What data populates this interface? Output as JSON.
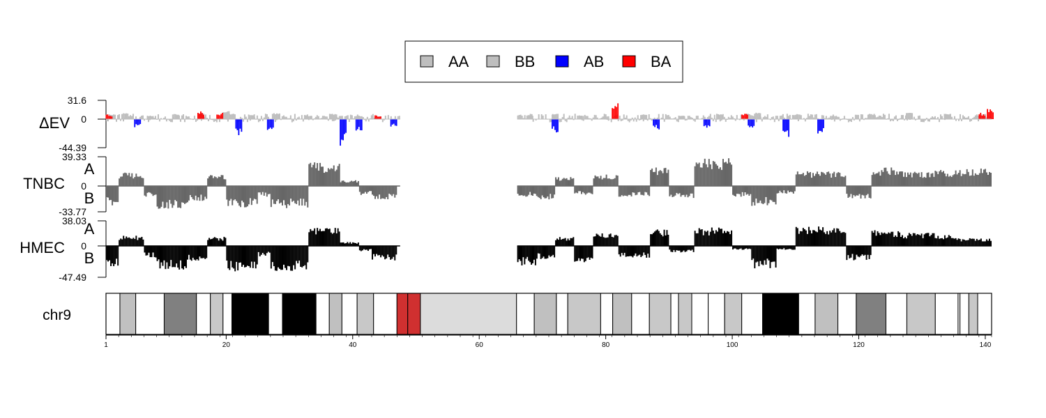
{
  "legend": {
    "items": [
      {
        "label": "AA",
        "color": "#BEBEBE"
      },
      {
        "label": "BB",
        "color": "#BEBEBE"
      },
      {
        "label": "AB",
        "color": "#0000FF"
      },
      {
        "label": "BA",
        "color": "#FF0000"
      }
    ]
  },
  "chart_data": {
    "type": "bar",
    "chromosome": "chr9",
    "x_ticks": [
      1,
      20,
      40,
      60,
      80,
      100,
      120,
      140
    ],
    "xlim": [
      1,
      141
    ],
    "gap_region": [
      47.5,
      66
    ],
    "tracks": [
      {
        "name": "ΔEV",
        "ymax": 31.6,
        "ymin": -44.39,
        "ymax_label": "31.6",
        "zero_label": "0",
        "ymin_label": "-44.39",
        "series": {
          "AA_BB_gray": [
            [
              2,
              8
            ],
            [
              4,
              10
            ],
            [
              8,
              6
            ],
            [
              12,
              9
            ],
            [
              16,
              11
            ],
            [
              20,
              14
            ],
            [
              24,
              8
            ],
            [
              28,
              10
            ],
            [
              33,
              6
            ],
            [
              37,
              9
            ],
            [
              41,
              6
            ],
            [
              44,
              5
            ],
            [
              68,
              7
            ],
            [
              72,
              9
            ],
            [
              76,
              6
            ],
            [
              80,
              5
            ],
            [
              86,
              8
            ],
            [
              92,
              6
            ],
            [
              98,
              9
            ],
            [
              104,
              11
            ],
            [
              110,
              8
            ],
            [
              116,
              6
            ],
            [
              122,
              9
            ],
            [
              128,
              11
            ],
            [
              134,
              9
            ],
            [
              139,
              6
            ]
          ],
          "AB": [
            [
              6,
              -15
            ],
            [
              22,
              -25
            ],
            [
              27,
              -17
            ],
            [
              38.5,
              -42
            ],
            [
              41,
              -18
            ],
            [
              46.5,
              -14
            ],
            [
              72,
              -22
            ],
            [
              88,
              -17
            ],
            [
              96,
              -16
            ],
            [
              103,
              -17
            ],
            [
              108.5,
              -35
            ],
            [
              114,
              -26
            ]
          ],
          "BA": [
            [
              1.5,
              8
            ],
            [
              16,
              14
            ],
            [
              19,
              11
            ],
            [
              44,
              7
            ],
            [
              81.5,
              28
            ],
            [
              102,
              9
            ],
            [
              139.5,
              11
            ],
            [
              140.8,
              18
            ]
          ]
        }
      },
      {
        "name": "TNBC",
        "ymax": 39.33,
        "ymin": -33.77,
        "ymax_label": "39.33",
        "zero_label": "0",
        "ymin_label": "-33.77",
        "a_label": "A",
        "b_label": "B",
        "regions": [
          [
            1,
            3,
            -26
          ],
          [
            3,
            7,
            18
          ],
          [
            7,
            9,
            -14
          ],
          [
            9,
            14,
            -30
          ],
          [
            14,
            17,
            -20
          ],
          [
            17,
            20,
            15
          ],
          [
            20,
            25,
            -28
          ],
          [
            25,
            27,
            -14
          ],
          [
            27,
            33,
            -29
          ],
          [
            33,
            38,
            32
          ],
          [
            38,
            41,
            8
          ],
          [
            41,
            43,
            -12
          ],
          [
            43,
            47,
            -18
          ],
          [
            66,
            69,
            -14
          ],
          [
            69,
            72,
            -18
          ],
          [
            72,
            75,
            12
          ],
          [
            75,
            78,
            -12
          ],
          [
            78,
            82,
            16
          ],
          [
            82,
            87,
            -14
          ],
          [
            87,
            90,
            26
          ],
          [
            90,
            94,
            -16
          ],
          [
            94,
            100,
            38
          ],
          [
            100,
            103,
            -14
          ],
          [
            103,
            107,
            -26
          ],
          [
            107,
            110,
            -10
          ],
          [
            110,
            118,
            20
          ],
          [
            118,
            122,
            -18
          ],
          [
            122,
            127,
            25
          ],
          [
            127,
            132,
            20
          ],
          [
            132,
            135,
            22
          ],
          [
            135,
            141,
            24
          ]
        ]
      },
      {
        "name": "HMEC",
        "ymax": 38.03,
        "ymin": -47.49,
        "ymax_label": "38.03",
        "zero_label": "0",
        "ymin_label": "-47.49",
        "a_label": "A",
        "b_label": "B",
        "regions": [
          [
            1,
            3,
            -32
          ],
          [
            3,
            7,
            16
          ],
          [
            7,
            9,
            -18
          ],
          [
            9,
            14,
            -36
          ],
          [
            14,
            17,
            -24
          ],
          [
            17,
            20,
            14
          ],
          [
            20,
            25,
            -40
          ],
          [
            25,
            27,
            -16
          ],
          [
            27,
            33,
            -38
          ],
          [
            33,
            38,
            30
          ],
          [
            38,
            41,
            6
          ],
          [
            41,
            43,
            -8
          ],
          [
            43,
            47,
            -22
          ],
          [
            66,
            69,
            -30
          ],
          [
            69,
            72,
            -20
          ],
          [
            72,
            75,
            14
          ],
          [
            75,
            78,
            -26
          ],
          [
            78,
            82,
            20
          ],
          [
            82,
            87,
            -18
          ],
          [
            87,
            90,
            25
          ],
          [
            90,
            94,
            -10
          ],
          [
            94,
            100,
            28
          ],
          [
            100,
            103,
            -6
          ],
          [
            103,
            107,
            -34
          ],
          [
            107,
            110,
            -6
          ],
          [
            110,
            118,
            30
          ],
          [
            118,
            122,
            -22
          ],
          [
            122,
            127,
            24
          ],
          [
            127,
            132,
            20
          ],
          [
            132,
            135,
            18
          ],
          [
            135,
            141,
            12
          ]
        ]
      }
    ],
    "ideogram": [
      {
        "start": 1,
        "end": 3.2,
        "color": "#FFFFFF"
      },
      {
        "start": 3.2,
        "end": 5.7,
        "color": "#C0C0C0"
      },
      {
        "start": 5.7,
        "end": 10.2,
        "color": "#FFFFFF"
      },
      {
        "start": 10.2,
        "end": 15.3,
        "color": "#808080"
      },
      {
        "start": 15.3,
        "end": 17.5,
        "color": "#FFFFFF"
      },
      {
        "start": 17.5,
        "end": 19.5,
        "color": "#C8C8C8"
      },
      {
        "start": 19.5,
        "end": 20.9,
        "color": "#FFFFFF"
      },
      {
        "start": 20.9,
        "end": 26.7,
        "color": "#000000"
      },
      {
        "start": 26.7,
        "end": 28.9,
        "color": "#FFFFFF"
      },
      {
        "start": 28.9,
        "end": 34.2,
        "color": "#000000"
      },
      {
        "start": 34.2,
        "end": 36.3,
        "color": "#FFFFFF"
      },
      {
        "start": 36.3,
        "end": 38.3,
        "color": "#C0C0C0"
      },
      {
        "start": 38.3,
        "end": 40.7,
        "color": "#FFFFFF"
      },
      {
        "start": 40.7,
        "end": 43.3,
        "color": "#C8C8C8"
      },
      {
        "start": 43.3,
        "end": 47,
        "color": "#FFFFFF"
      },
      {
        "start": 47,
        "end": 48.7,
        "color": "#D03030"
      },
      {
        "start": 48.7,
        "end": 50.7,
        "color": "#D03030"
      },
      {
        "start": 50.7,
        "end": 65.9,
        "color": "#DCDCDC"
      },
      {
        "start": 65.9,
        "end": 68.7,
        "color": "#FFFFFF"
      },
      {
        "start": 68.7,
        "end": 72.2,
        "color": "#C0C0C0"
      },
      {
        "start": 72.2,
        "end": 74,
        "color": "#FFFFFF"
      },
      {
        "start": 74,
        "end": 79.2,
        "color": "#C8C8C8"
      },
      {
        "start": 79.2,
        "end": 81.1,
        "color": "#FFFFFF"
      },
      {
        "start": 81.1,
        "end": 84.1,
        "color": "#C0C0C0"
      },
      {
        "start": 84.1,
        "end": 86.9,
        "color": "#FFFFFF"
      },
      {
        "start": 86.9,
        "end": 90.3,
        "color": "#C8C8C8"
      },
      {
        "start": 90.3,
        "end": 91.5,
        "color": "#FFFFFF"
      },
      {
        "start": 91.5,
        "end": 93.6,
        "color": "#C8C8C8"
      },
      {
        "start": 93.6,
        "end": 96.2,
        "color": "#FFFFFF"
      },
      {
        "start": 96.2,
        "end": 98.8,
        "color": "#FFFFFF"
      },
      {
        "start": 98.8,
        "end": 101.5,
        "color": "#C8C8C8"
      },
      {
        "start": 101.5,
        "end": 104.8,
        "color": "#FFFFFF"
      },
      {
        "start": 104.8,
        "end": 110.5,
        "color": "#000000"
      },
      {
        "start": 110.5,
        "end": 113.1,
        "color": "#FFFFFF"
      },
      {
        "start": 113.1,
        "end": 116.7,
        "color": "#C0C0C0"
      },
      {
        "start": 116.7,
        "end": 119.6,
        "color": "#FFFFFF"
      },
      {
        "start": 119.6,
        "end": 124.3,
        "color": "#808080"
      },
      {
        "start": 124.3,
        "end": 127.6,
        "color": "#FFFFFF"
      },
      {
        "start": 127.6,
        "end": 132.1,
        "color": "#C8C8C8"
      },
      {
        "start": 132.1,
        "end": 135.7,
        "color": "#FFFFFF"
      },
      {
        "start": 135.7,
        "end": 136,
        "color": "#FFFFFF"
      },
      {
        "start": 136,
        "end": 137.4,
        "color": "#FFFFFF"
      },
      {
        "start": 137.4,
        "end": 138.8,
        "color": "#C8C8C8"
      },
      {
        "start": 138.8,
        "end": 141,
        "color": "#FFFFFF"
      }
    ]
  }
}
